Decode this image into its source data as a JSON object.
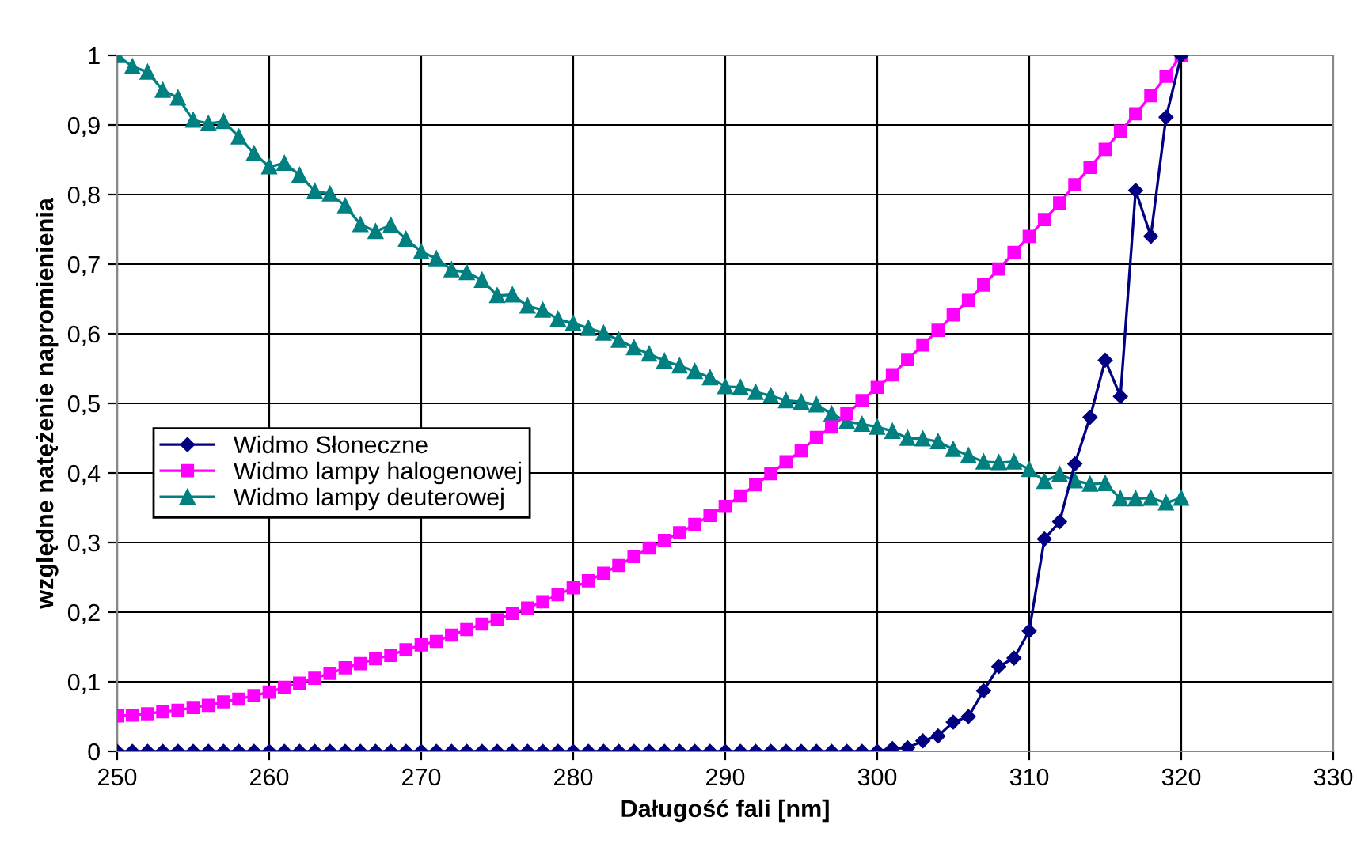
{
  "chart_data": {
    "type": "line",
    "xlabel": "Daługość fali [nm]",
    "ylabel": "względne natężenie napromienienia",
    "x": [
      250,
      251,
      252,
      253,
      254,
      255,
      256,
      257,
      258,
      259,
      260,
      261,
      262,
      263,
      264,
      265,
      266,
      267,
      268,
      269,
      270,
      271,
      272,
      273,
      274,
      275,
      276,
      277,
      278,
      279,
      280,
      281,
      282,
      283,
      284,
      285,
      286,
      287,
      288,
      289,
      290,
      291,
      292,
      293,
      294,
      295,
      296,
      297,
      298,
      299,
      300,
      301,
      302,
      303,
      304,
      305,
      306,
      307,
      308,
      309,
      310,
      311,
      312,
      313,
      314,
      315,
      316,
      317,
      318,
      319,
      320
    ],
    "series": [
      {
        "name": "Widmo Słoneczne",
        "color": "#000080",
        "marker": "diamond",
        "values": [
          0,
          0,
          0,
          0,
          0,
          0,
          0,
          0,
          0,
          0,
          0,
          0,
          0,
          0,
          0,
          0,
          0,
          0,
          0,
          0,
          0,
          0,
          0,
          0,
          0,
          0,
          0,
          0,
          0,
          0,
          0,
          0,
          0,
          0,
          0,
          0,
          0,
          0,
          0,
          0,
          0,
          0,
          0,
          0,
          0,
          0,
          0,
          0,
          0,
          0,
          0,
          0.004,
          0.005,
          0.015,
          0.022,
          0.042,
          0.05,
          0.087,
          0.122,
          0.134,
          0.173,
          0.305,
          0.33,
          0.413,
          0.48,
          0.562,
          0.51,
          0.806,
          0.74,
          0.911,
          1.0
        ]
      },
      {
        "name": "Widmo lampy halogenowej",
        "color": "#ff00ff",
        "marker": "square",
        "values": [
          0.051,
          0.052,
          0.054,
          0.057,
          0.059,
          0.063,
          0.066,
          0.071,
          0.075,
          0.08,
          0.085,
          0.092,
          0.098,
          0.105,
          0.112,
          0.12,
          0.126,
          0.133,
          0.138,
          0.146,
          0.153,
          0.158,
          0.167,
          0.175,
          0.183,
          0.189,
          0.198,
          0.206,
          0.215,
          0.225,
          0.235,
          0.245,
          0.256,
          0.267,
          0.28,
          0.292,
          0.303,
          0.314,
          0.326,
          0.339,
          0.352,
          0.367,
          0.383,
          0.399,
          0.416,
          0.432,
          0.451,
          0.466,
          0.485,
          0.504,
          0.523,
          0.541,
          0.563,
          0.584,
          0.605,
          0.627,
          0.648,
          0.67,
          0.693,
          0.717,
          0.74,
          0.764,
          0.788,
          0.814,
          0.839,
          0.865,
          0.891,
          0.916,
          0.942,
          0.97,
          1.0
        ]
      },
      {
        "name": "Widmo lampy deuterowej",
        "color": "#008080",
        "marker": "triangle",
        "values": [
          1.0,
          0.984,
          0.976,
          0.95,
          0.939,
          0.907,
          0.902,
          0.905,
          0.883,
          0.859,
          0.84,
          0.845,
          0.828,
          0.805,
          0.801,
          0.784,
          0.757,
          0.747,
          0.756,
          0.736,
          0.718,
          0.708,
          0.692,
          0.688,
          0.677,
          0.655,
          0.656,
          0.64,
          0.634,
          0.621,
          0.615,
          0.608,
          0.601,
          0.591,
          0.58,
          0.571,
          0.561,
          0.554,
          0.546,
          0.537,
          0.524,
          0.523,
          0.516,
          0.511,
          0.504,
          0.502,
          0.498,
          0.485,
          0.474,
          0.47,
          0.466,
          0.46,
          0.45,
          0.449,
          0.445,
          0.434,
          0.425,
          0.416,
          0.415,
          0.416,
          0.405,
          0.388,
          0.398,
          0.389,
          0.384,
          0.385,
          0.363,
          0.363,
          0.364,
          0.357,
          0.364
        ]
      }
    ],
    "xlim": [
      250,
      330
    ],
    "xticks": [
      250,
      260,
      270,
      280,
      290,
      300,
      310,
      320,
      330
    ],
    "ylim": [
      0,
      1
    ],
    "yticks": [
      0,
      {
        "value": 0.1,
        "label": "0,1"
      },
      {
        "value": 0.2,
        "label": "0,2"
      },
      {
        "value": 0.3,
        "label": "0,3"
      },
      {
        "value": 0.4,
        "label": "0,4"
      },
      {
        "value": 0.5,
        "label": "0,5"
      },
      {
        "value": 0.6,
        "label": "0,6"
      },
      {
        "value": 0.7,
        "label": "0,7"
      },
      {
        "value": 0.8,
        "label": "0,8"
      },
      {
        "value": 0.9,
        "label": "0,9"
      },
      1
    ],
    "grid": true,
    "legend": "center left",
    "line_style": "solid"
  }
}
